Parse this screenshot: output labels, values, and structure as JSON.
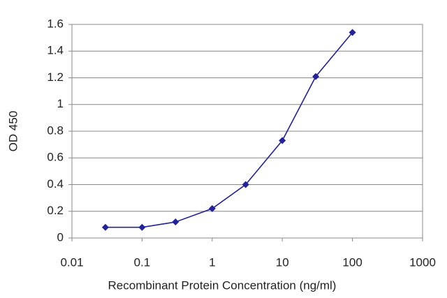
{
  "chart_data": {
    "type": "line",
    "xlabel": "Recombinant Protein Concentration (ng/ml)",
    "ylabel": "OD 450",
    "x": [
      0.03,
      0.1,
      0.3,
      1,
      3,
      10,
      30,
      100
    ],
    "values": [
      0.08,
      0.08,
      0.12,
      0.22,
      0.4,
      0.73,
      1.21,
      1.54
    ],
    "color": "#22229a",
    "xscale": "log",
    "xlim": [
      0.01,
      1000
    ],
    "xticks": [
      0.01,
      0.1,
      1,
      10,
      100,
      1000
    ],
    "ylim": [
      0,
      1.6
    ],
    "yticks": [
      0,
      0.2,
      0.4,
      0.6,
      0.8,
      1,
      1.2,
      1.4,
      1.6
    ],
    "grid": true
  }
}
